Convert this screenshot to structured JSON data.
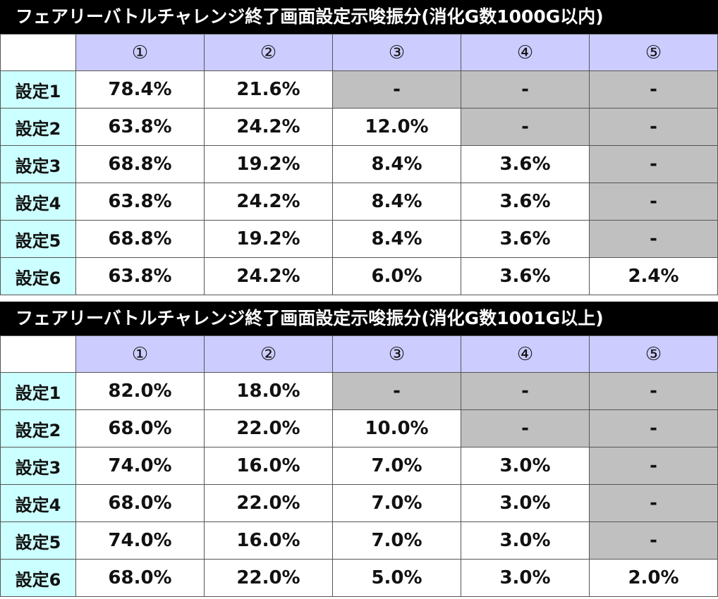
{
  "tables": [
    {
      "title": "フェアリーバトルチャレンジ終了画面設定示唆振分(消化G数1000G以内)",
      "corner": "",
      "headers": [
        "①",
        "②",
        "③",
        "④",
        "⑤"
      ],
      "rows": [
        {
          "label": "設定1",
          "cells": [
            "78.4%",
            "21.6%",
            "-",
            "-",
            "-"
          ]
        },
        {
          "label": "設定2",
          "cells": [
            "63.8%",
            "24.2%",
            "12.0%",
            "-",
            "-"
          ]
        },
        {
          "label": "設定3",
          "cells": [
            "68.8%",
            "19.2%",
            "8.4%",
            "3.6%",
            "-"
          ]
        },
        {
          "label": "設定4",
          "cells": [
            "63.8%",
            "24.2%",
            "8.4%",
            "3.6%",
            "-"
          ]
        },
        {
          "label": "設定5",
          "cells": [
            "68.8%",
            "19.2%",
            "8.4%",
            "3.6%",
            "-"
          ]
        },
        {
          "label": "設定6",
          "cells": [
            "63.8%",
            "24.2%",
            "6.0%",
            "3.6%",
            "2.4%"
          ]
        }
      ]
    },
    {
      "title": "フェアリーバトルチャレンジ終了画面設定示唆振分(消化G数1001G以上)",
      "corner": "",
      "headers": [
        "①",
        "②",
        "③",
        "④",
        "⑤"
      ],
      "rows": [
        {
          "label": "設定1",
          "cells": [
            "82.0%",
            "18.0%",
            "-",
            "-",
            "-"
          ]
        },
        {
          "label": "設定2",
          "cells": [
            "68.0%",
            "22.0%",
            "10.0%",
            "-",
            "-"
          ]
        },
        {
          "label": "設定3",
          "cells": [
            "74.0%",
            "16.0%",
            "7.0%",
            "3.0%",
            "-"
          ]
        },
        {
          "label": "設定4",
          "cells": [
            "68.0%",
            "22.0%",
            "7.0%",
            "3.0%",
            "-"
          ]
        },
        {
          "label": "設定5",
          "cells": [
            "74.0%",
            "16.0%",
            "7.0%",
            "3.0%",
            "-"
          ]
        },
        {
          "label": "設定6",
          "cells": [
            "68.0%",
            "22.0%",
            "5.0%",
            "3.0%",
            "2.0%"
          ]
        }
      ]
    }
  ],
  "colors": {
    "title_bg": "#000000",
    "header_bg": "#ccccff",
    "row_label_bg": "#ccffff",
    "not_applicable_bg": "#c0c0c0"
  }
}
